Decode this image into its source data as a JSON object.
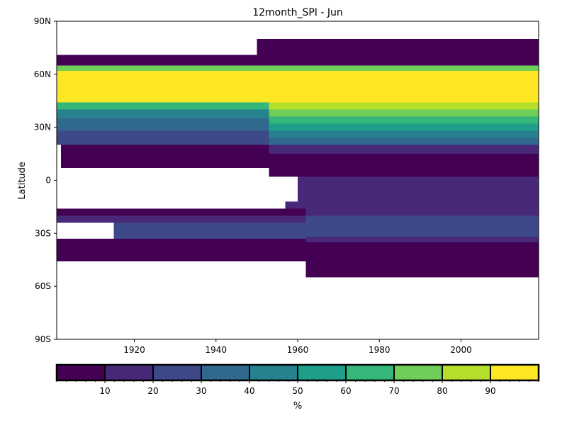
{
  "chart_data": {
    "type": "heatmap",
    "title": "12month_SPI - Jun",
    "xlabel": "",
    "ylabel": "Latitude",
    "xlim": [
      1901,
      2019
    ],
    "ylim": [
      -90,
      90
    ],
    "x_ticks": [
      1920,
      1940,
      1960,
      1980,
      2000
    ],
    "x_tick_labels": [
      "1920",
      "1940",
      "1960",
      "1980",
      "2000"
    ],
    "y_ticks": [
      -90,
      -60,
      -30,
      0,
      30,
      60,
      90
    ],
    "y_tick_labels": [
      "90S",
      "60S",
      "30S",
      "0",
      "30N",
      "60N",
      "90N"
    ],
    "grid": false,
    "colorbar": {
      "label": "%",
      "boundaries": [
        0,
        10,
        20,
        30,
        40,
        50,
        60,
        70,
        80,
        90,
        100
      ],
      "tick_values": [
        10,
        20,
        30,
        40,
        50,
        60,
        70,
        80,
        90
      ],
      "tick_labels": [
        "10",
        "20",
        "30",
        "40",
        "50",
        "60",
        "70",
        "80",
        "90"
      ],
      "colors": [
        "#440154",
        "#482878",
        "#3e4989",
        "#31688e",
        "#26828e",
        "#1f9e89",
        "#35b779",
        "#6ece58",
        "#b5de2b",
        "#fde725"
      ]
    },
    "bands": [
      {
        "lat": [
          71,
          80
        ],
        "x": [
          1950,
          2019
        ],
        "value": 5
      },
      {
        "lat": [
          65,
          71
        ],
        "x": [
          1901,
          2019
        ],
        "value": 5
      },
      {
        "lat": [
          62,
          65
        ],
        "x": [
          1901,
          2019
        ],
        "value": 75
      },
      {
        "lat": [
          44,
          62
        ],
        "x": [
          1901,
          2019
        ],
        "value": 95
      },
      {
        "lat": [
          40,
          44
        ],
        "x": [
          1901,
          1953
        ],
        "value": 65
      },
      {
        "lat": [
          35,
          40
        ],
        "x": [
          1901,
          1953
        ],
        "value": 45
      },
      {
        "lat": [
          28,
          35
        ],
        "x": [
          1901,
          1953
        ],
        "value": 35
      },
      {
        "lat": [
          20,
          28
        ],
        "x": [
          1901,
          1953
        ],
        "value": 25
      },
      {
        "lat": [
          7,
          20
        ],
        "x": [
          1902,
          1953
        ],
        "value": 5
      },
      {
        "lat": [
          40,
          44
        ],
        "x": [
          1953,
          2019
        ],
        "value": 85
      },
      {
        "lat": [
          36,
          40
        ],
        "x": [
          1953,
          2019
        ],
        "value": 75
      },
      {
        "lat": [
          32,
          36
        ],
        "x": [
          1953,
          2019
        ],
        "value": 65
      },
      {
        "lat": [
          28,
          32
        ],
        "x": [
          1953,
          2019
        ],
        "value": 55
      },
      {
        "lat": [
          24,
          28
        ],
        "x": [
          1953,
          2019
        ],
        "value": 45
      },
      {
        "lat": [
          20,
          24
        ],
        "x": [
          1953,
          2019
        ],
        "value": 35
      },
      {
        "lat": [
          15,
          20
        ],
        "x": [
          1953,
          2019
        ],
        "value": 15
      },
      {
        "lat": [
          2,
          15
        ],
        "x": [
          1953,
          2019
        ],
        "value": 5
      },
      {
        "lat": [
          -12,
          2
        ],
        "x": [
          1960,
          2019
        ],
        "value": 15
      },
      {
        "lat": [
          -18,
          -12
        ],
        "x": [
          1957,
          2019
        ],
        "value": 15
      },
      {
        "lat": [
          -20,
          -16
        ],
        "x": [
          1901,
          1962
        ],
        "value": 5
      },
      {
        "lat": [
          -24,
          -20
        ],
        "x": [
          1901,
          1962
        ],
        "value": 15
      },
      {
        "lat": [
          -33,
          -24
        ],
        "x": [
          1915,
          1962
        ],
        "value": 25
      },
      {
        "lat": [
          -20,
          -18
        ],
        "x": [
          1962,
          2019
        ],
        "value": 15
      },
      {
        "lat": [
          -32,
          -20
        ],
        "x": [
          1962,
          2019
        ],
        "value": 25
      },
      {
        "lat": [
          -35,
          -32
        ],
        "x": [
          1962,
          2019
        ],
        "value": 15
      },
      {
        "lat": [
          -46,
          -33
        ],
        "x": [
          1901,
          1962
        ],
        "value": 5
      },
      {
        "lat": [
          -55,
          -35
        ],
        "x": [
          1962,
          2019
        ],
        "value": 5
      }
    ]
  }
}
